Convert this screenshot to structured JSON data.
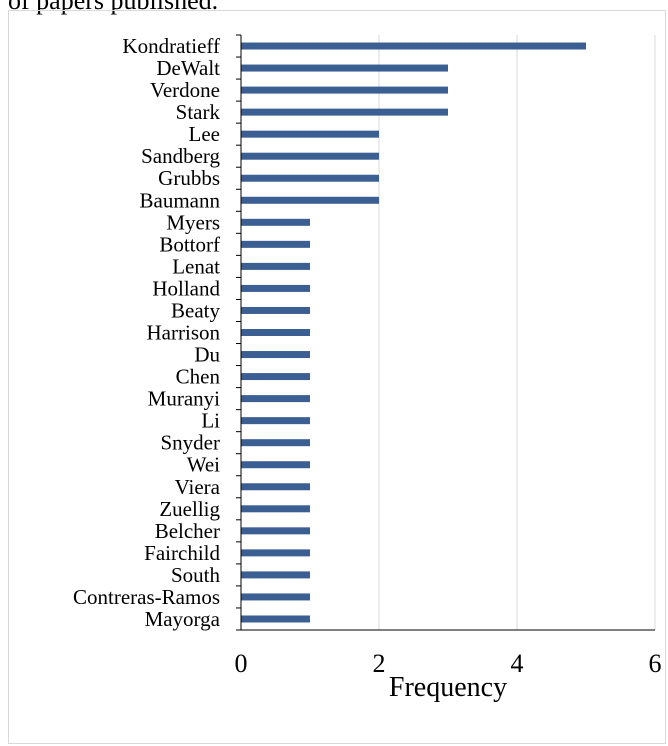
{
  "caption": "of papers published.",
  "chart_data": {
    "type": "bar",
    "orientation": "horizontal",
    "categories": [
      "Kondratieff",
      "DeWalt",
      "Verdone",
      "Stark",
      "Lee",
      "Sandberg",
      "Grubbs",
      "Baumann",
      "Myers",
      "Bottorf",
      "Lenat",
      "Holland",
      "Beaty",
      "Harrison",
      "Du",
      "Chen",
      "Muranyi",
      "Li",
      "Snyder",
      "Wei",
      "Viera",
      "Zuellig",
      "Belcher",
      "Fairchild",
      "South",
      "Contreras-Ramos",
      "Mayorga"
    ],
    "values": [
      5,
      3,
      3,
      3,
      2,
      2,
      2,
      2,
      1,
      1,
      1,
      1,
      1,
      1,
      1,
      1,
      1,
      1,
      1,
      1,
      1,
      1,
      1,
      1,
      1,
      1,
      1
    ],
    "xlabel": "Frequency",
    "ylabel": "",
    "xlim": [
      0,
      6
    ],
    "xticks": [
      "0",
      "2",
      "4",
      "6"
    ],
    "grid": "vertical",
    "legend": "none",
    "bar_color": "#3b5e93"
  }
}
